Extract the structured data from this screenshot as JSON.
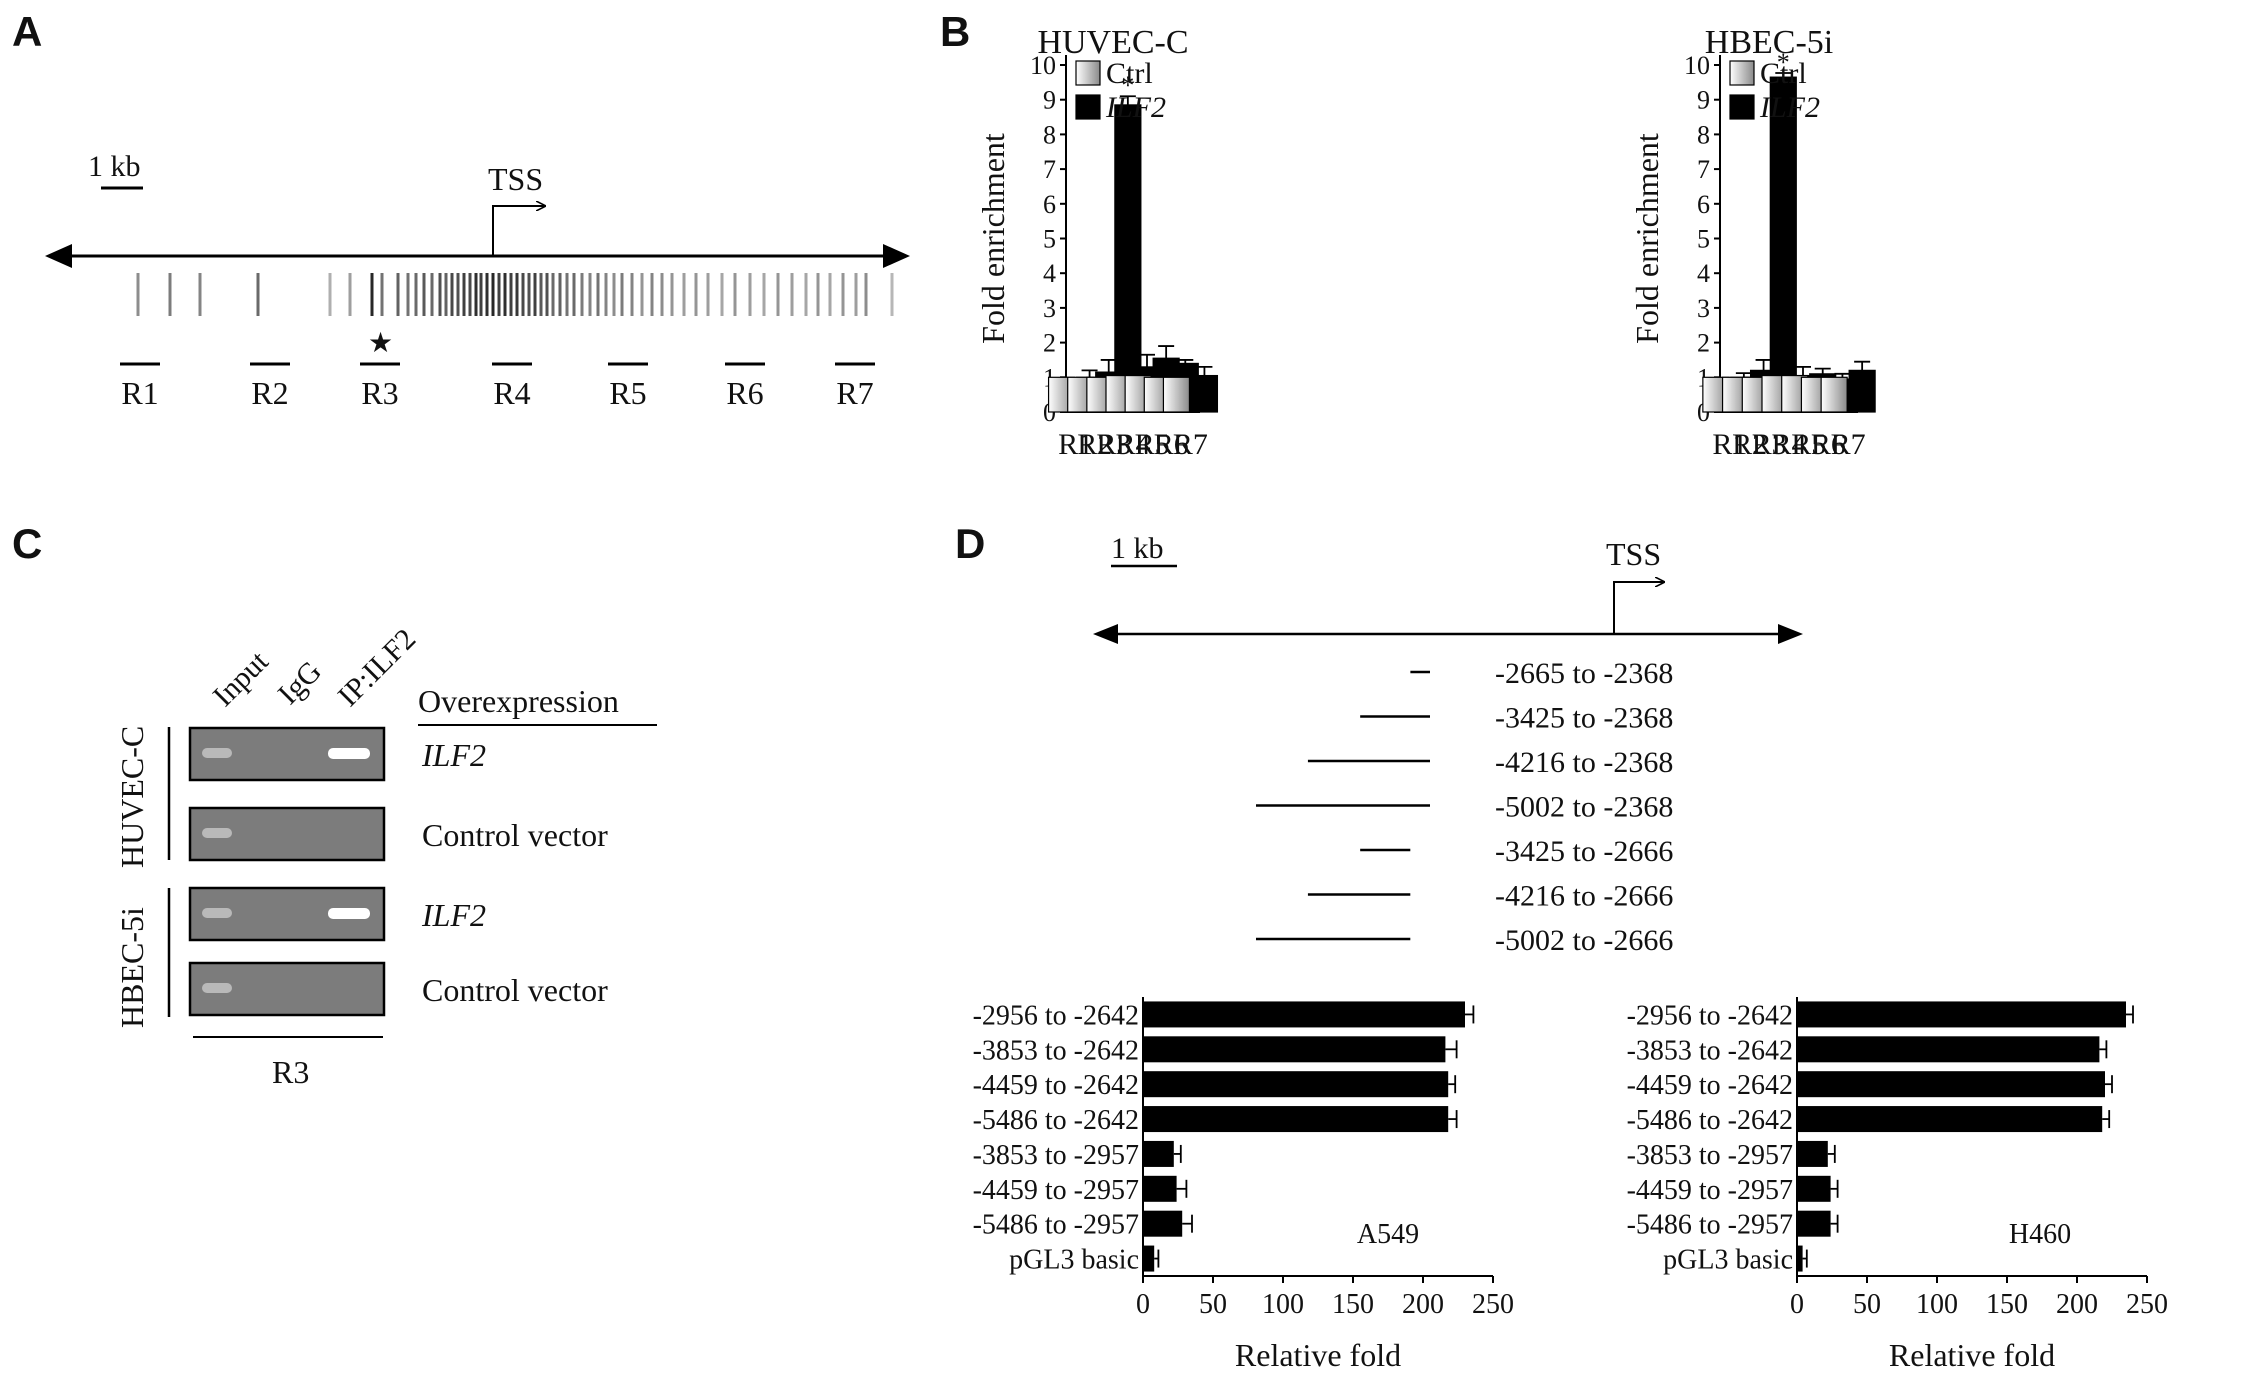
{
  "panel_labels": [
    "A",
    "B",
    "C",
    "D"
  ],
  "panel_a": {
    "scale_label": "1 kb",
    "tss_label": "TSS",
    "star": "★",
    "regions": [
      "R1",
      "R2",
      "R3",
      "R4",
      "R5",
      "R6",
      "R7"
    ]
  },
  "panel_c": {
    "lane_labels": [
      "Input",
      "IgG",
      "IP:ILF2"
    ],
    "header": "Overexpression",
    "cell_lines": [
      "HBEC-5i",
      "HUVEC-C"
    ],
    "rows": [
      "ILF2",
      "Control vector",
      "ILF2",
      "Control vector"
    ],
    "bottom_label": "R3"
  },
  "panel_d_map": {
    "scale_label": "1 kb",
    "tss_label": "TSS",
    "constructs": [
      "-2665 to -2368",
      "-3425 to -2368",
      "-4216 to -2368",
      "-5002 to -2368",
      "-3425 to -2666",
      "-4216 to -2666",
      "-5002 to -2666"
    ]
  },
  "chart_data": [
    {
      "type": "bar",
      "title": "HUVEC-C",
      "ylabel": "Fold enrichment",
      "ylim": [
        0,
        10
      ],
      "yticks": [
        0,
        1,
        2,
        3,
        4,
        5,
        6,
        7,
        8,
        9,
        10
      ],
      "categories": [
        "R1",
        "R2",
        "R3",
        "R4",
        "R5",
        "R6",
        "R7"
      ],
      "series": [
        {
          "name": "Ctrl",
          "values": [
            1.0,
            1.0,
            1.0,
            1.05,
            1.05,
            1.0,
            1.0
          ],
          "errors": [
            0,
            0,
            0,
            0,
            0,
            0,
            0
          ]
        },
        {
          "name": "ILF2",
          "values": [
            1.0,
            1.15,
            8.85,
            1.3,
            1.55,
            1.4,
            1.05
          ],
          "errors": [
            0.2,
            0.35,
            0.25,
            0.35,
            0.35,
            0.1,
            0.25
          ]
        }
      ],
      "annotations": [
        {
          "category": "R3",
          "text": "*"
        }
      ]
    },
    {
      "type": "bar",
      "title": "HBEC-5i",
      "ylabel": "Fold enrichment",
      "ylim": [
        0,
        10
      ],
      "yticks": [
        0,
        1,
        2,
        3,
        4,
        5,
        6,
        7,
        8,
        9,
        10
      ],
      "categories": [
        "R1",
        "R2",
        "R3",
        "R4",
        "R5",
        "R6",
        "R7"
      ],
      "series": [
        {
          "name": "Ctrl",
          "values": [
            1.0,
            1.0,
            1.0,
            1.05,
            1.05,
            1.0,
            1.0
          ],
          "errors": [
            0,
            0,
            0,
            0,
            0,
            0,
            0
          ]
        },
        {
          "name": "ILF2",
          "values": [
            1.0,
            1.2,
            9.65,
            1.05,
            1.1,
            0.95,
            1.2
          ],
          "errors": [
            0.12,
            0.3,
            0.12,
            0.25,
            0.15,
            0.15,
            0.25
          ]
        }
      ],
      "annotations": [
        {
          "category": "R3",
          "text": "*"
        }
      ]
    },
    {
      "type": "bar",
      "orientation": "horizontal",
      "label": "A549",
      "xlabel": "Relative fold",
      "xlim": [
        0,
        250
      ],
      "xticks": [
        0,
        50,
        100,
        150,
        200,
        250
      ],
      "categories": [
        "-2956 to -2642",
        "-3853 to -2642",
        "-4459 to -2642",
        "-5486 to -2642",
        "-3853 to -2957",
        "-4459 to -2957",
        "-5486 to -2957",
        "pGL3 basic"
      ],
      "values": [
        230,
        216,
        218,
        218,
        22,
        24,
        28,
        8
      ],
      "errors": [
        6,
        8,
        5,
        6,
        5,
        7,
        7,
        3
      ]
    },
    {
      "type": "bar",
      "orientation": "horizontal",
      "label": "H460",
      "xlabel": "Relative fold",
      "xlim": [
        0,
        250
      ],
      "xticks": [
        0,
        50,
        100,
        150,
        200,
        250
      ],
      "categories": [
        "-2956 to -2642",
        "-3853 to -2642",
        "-4459 to -2642",
        "-5486 to -2642",
        "-3853 to -2957",
        "-4459 to -2957",
        "-5486 to -2957",
        "pGL3 basic"
      ],
      "values": [
        235,
        216,
        220,
        218,
        22,
        24,
        24,
        4
      ],
      "errors": [
        5,
        5,
        5,
        5,
        5,
        5,
        5,
        3
      ]
    }
  ]
}
